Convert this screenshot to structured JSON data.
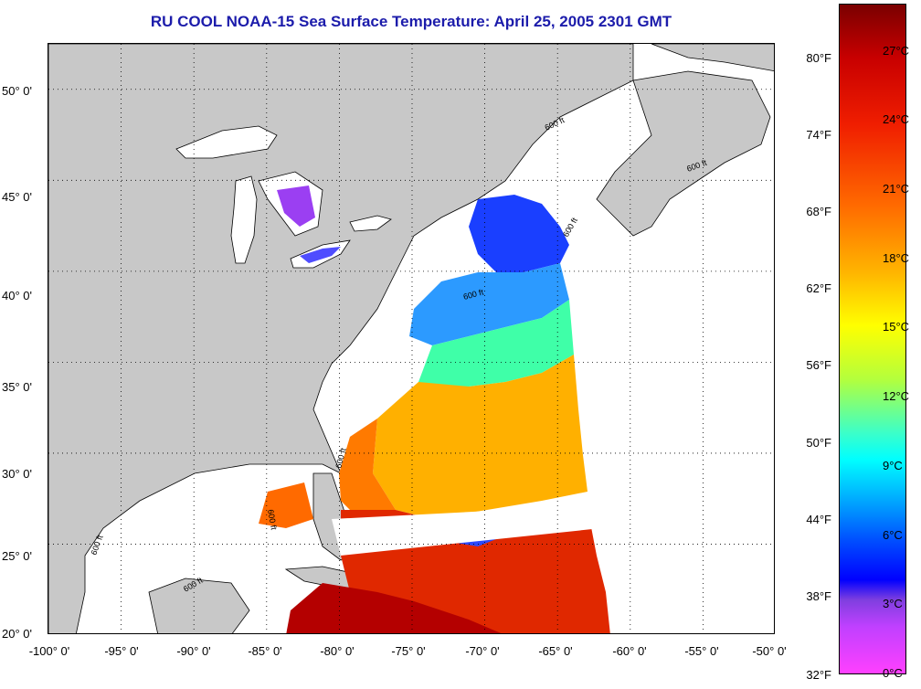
{
  "title": "RU COOL  NOAA-15  Sea Surface Temperature:  April 25, 2005 2301 GMT",
  "map": {
    "lat_labels": [
      "50° 0'",
      "45° 0'",
      "40° 0'",
      "35° 0'",
      "30° 0'",
      "25° 0'",
      "20° 0'"
    ],
    "lon_labels": [
      "-100° 0'",
      "-95° 0'",
      "-90° 0'",
      "-85° 0'",
      "-80° 0'",
      "-75° 0'",
      "-70° 0'",
      "-65° 0'",
      "-60° 0'",
      "-55° 0'",
      "-50° 0'"
    ],
    "lat_range": [
      20,
      52.5
    ],
    "lon_range": [
      -100,
      -50
    ],
    "isobath_label": "600 ft",
    "land_color": "#c8c8c8",
    "no_data_color": "#ffffff"
  },
  "colorbar": {
    "fahrenheit_labels": [
      "80°F",
      "74°F",
      "68°F",
      "62°F",
      "56°F",
      "50°F",
      "44°F",
      "38°F",
      "32°F"
    ],
    "celsius_labels": [
      "27°C",
      "24°C",
      "21°C",
      "18°C",
      "15°C",
      "12°C",
      "9°C",
      "6°C",
      "3°C",
      "0°C"
    ]
  }
}
